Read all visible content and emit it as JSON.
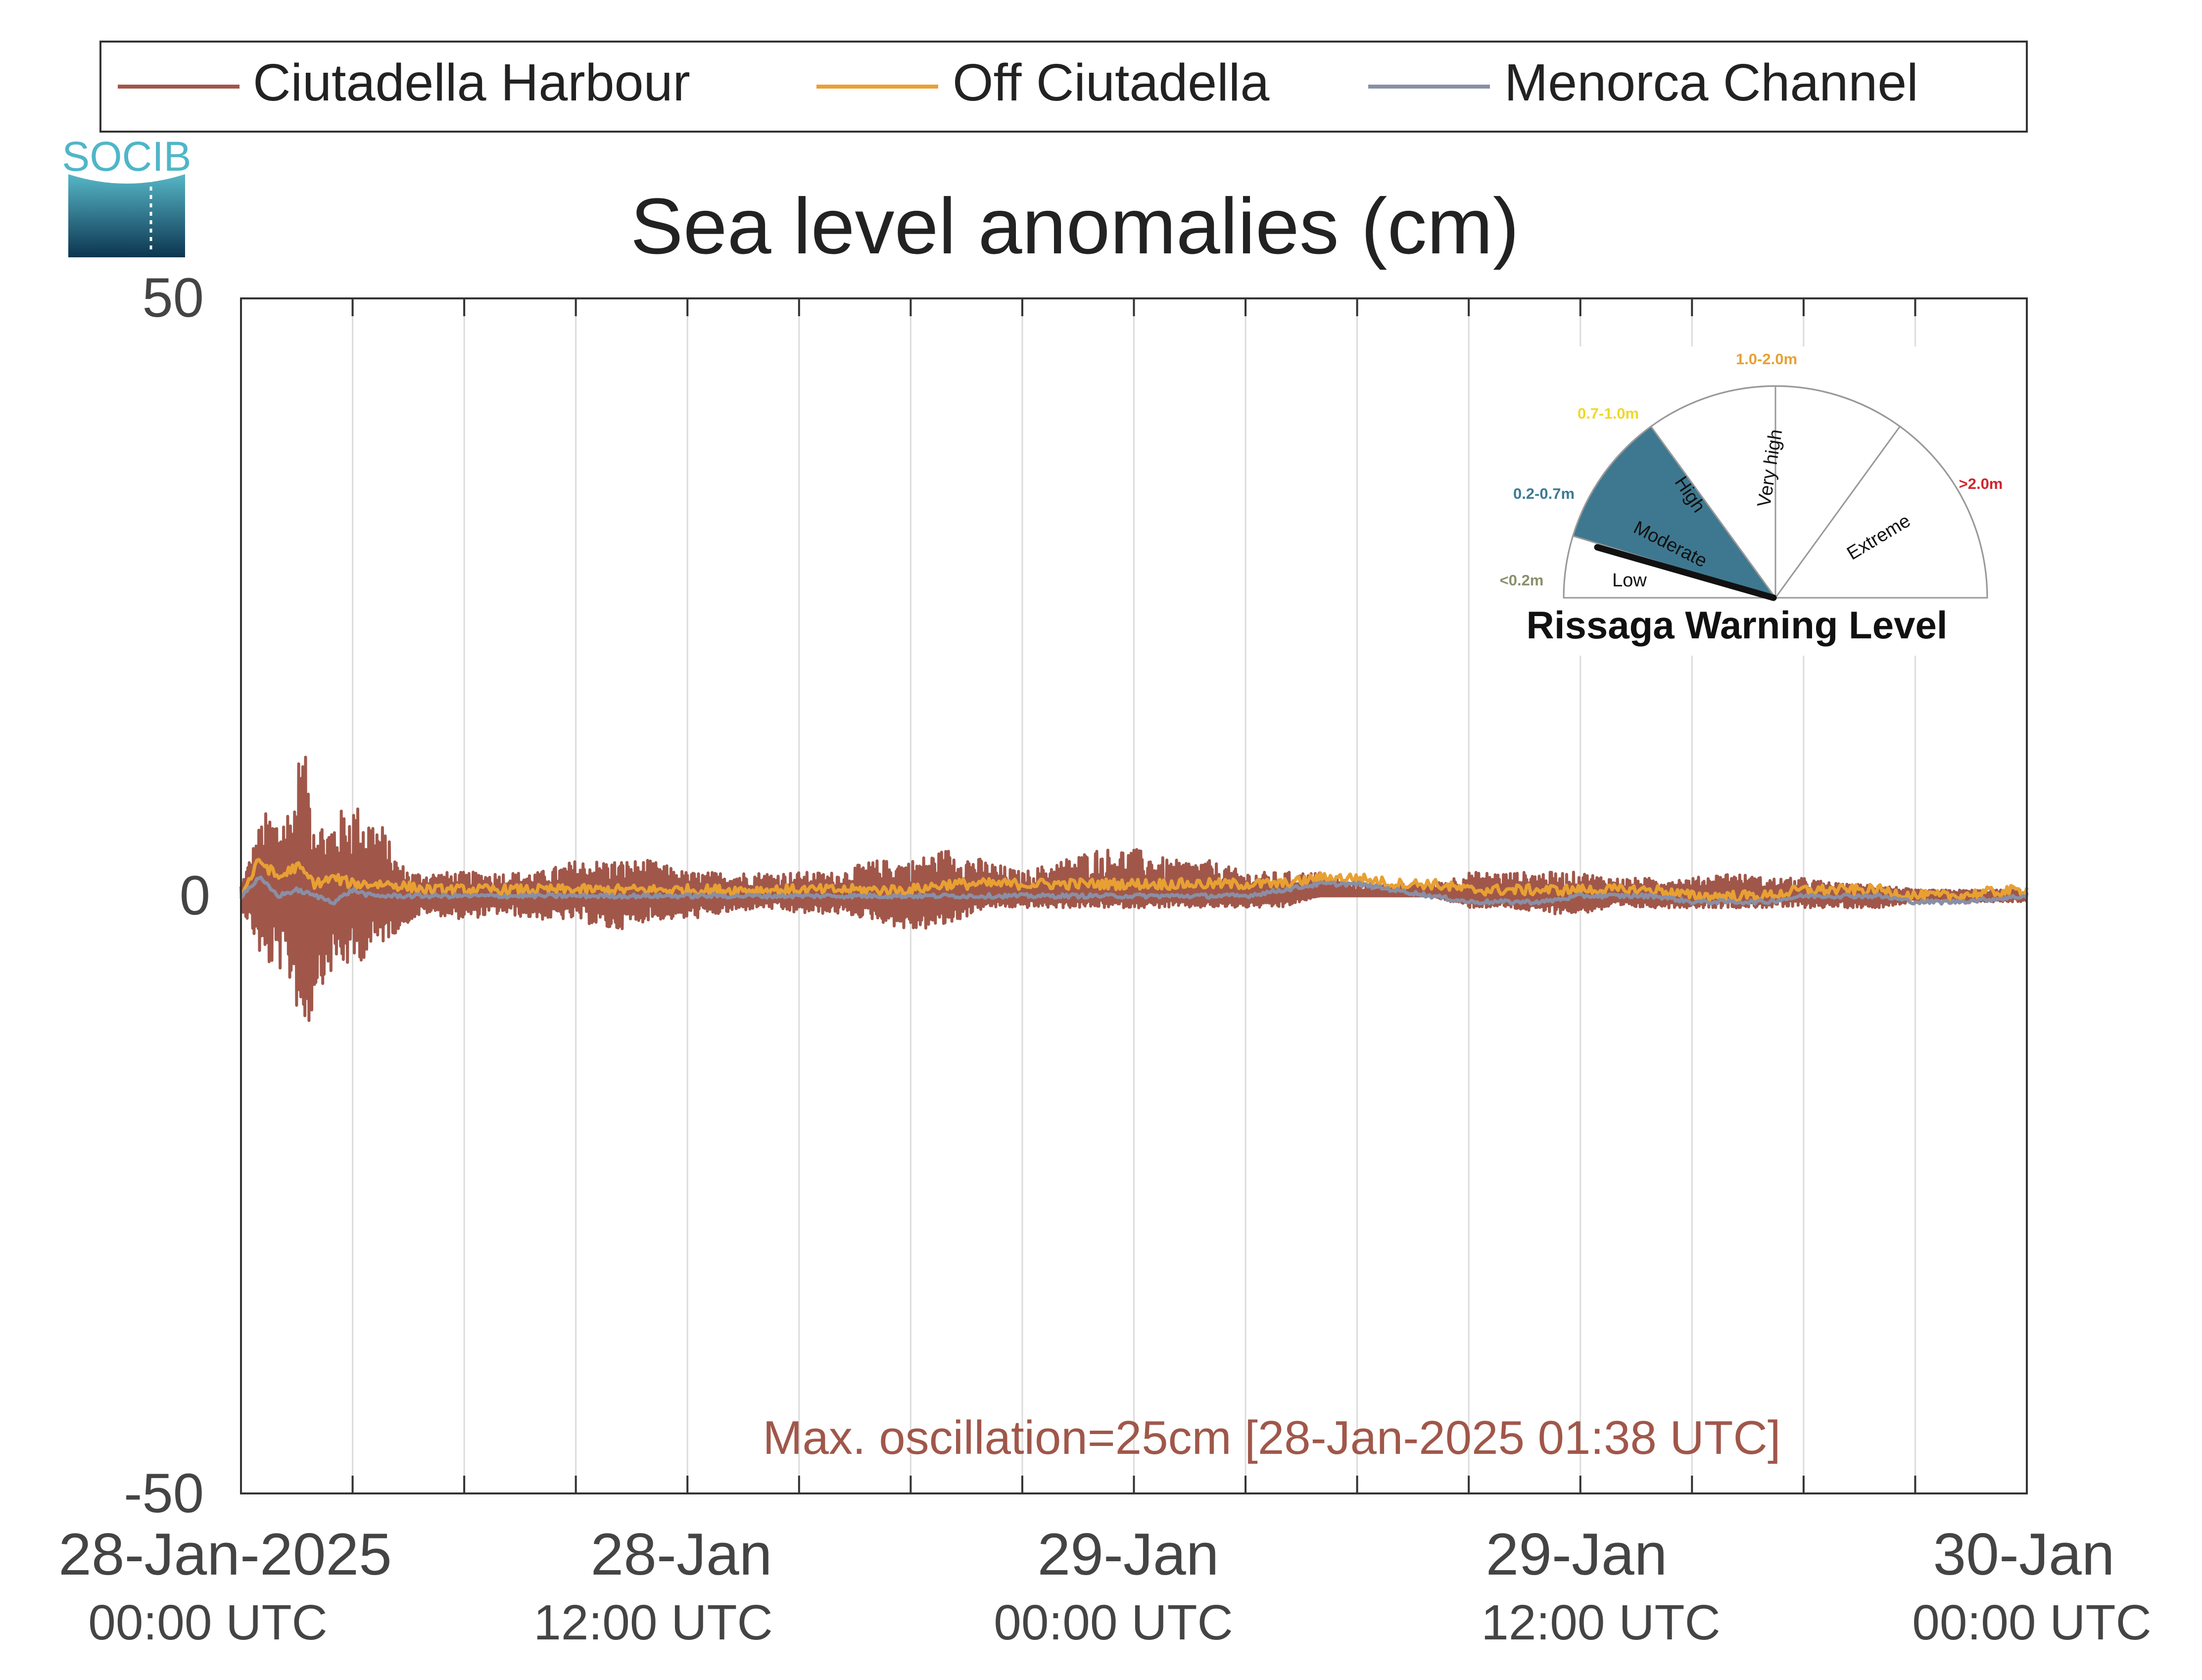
{
  "logo": {
    "text": "SOCIB"
  },
  "chart_data": {
    "type": "line",
    "title": "Sea level anomalies (cm)",
    "xlabel": "",
    "ylabel": "",
    "ylim": [
      -50,
      50
    ],
    "yticks": [
      -50,
      0,
      50
    ],
    "xlim_hours": [
      0,
      48
    ],
    "x_unit": "hours after 28-Jan-2025 00:00 UTC",
    "grid": "vertical every 3 hours",
    "legend_position": "top",
    "x_ticks": [
      {
        "hour": 0,
        "date": "28-Jan-2025",
        "time": "00:00 UTC"
      },
      {
        "hour": 12,
        "date": "28-Jan",
        "time": "12:00 UTC"
      },
      {
        "hour": 24,
        "date": "29-Jan",
        "time": "00:00 UTC"
      },
      {
        "hour": 36,
        "date": "29-Jan",
        "time": "12:00 UTC"
      },
      {
        "hour": 48,
        "date": "30-Jan",
        "time": "00:00 UTC"
      }
    ],
    "annotation": "Max. oscillation=25cm [28-Jan-2025 01:38 UTC]",
    "annotation_color": "#A0574A",
    "series": [
      {
        "name": "Ciutadella Harbour",
        "color": "#A0574A",
        "envelope_x": [
          0,
          0.3,
          0.6,
          1.0,
          1.4,
          1.6,
          1.8,
          2.0,
          2.3,
          2.6,
          3.0,
          3.4,
          3.8,
          4.2,
          4.6,
          5.0,
          6,
          7,
          8,
          9,
          10,
          11,
          12,
          13,
          14,
          15,
          16,
          17,
          18,
          19,
          20,
          21,
          22,
          23,
          24,
          25,
          26,
          27,
          28,
          29,
          30,
          31,
          32,
          33,
          34,
          35,
          36,
          37,
          38,
          39,
          40,
          41,
          42,
          43,
          44,
          45,
          46,
          47,
          48
        ],
        "envelope_min": [
          -1,
          -3,
          -6,
          -6,
          -8,
          -11,
          -12,
          -8,
          -7,
          -6,
          -6,
          -5,
          -4,
          -3,
          -2,
          -1.5,
          -2,
          -1.5,
          -2,
          -2,
          -3,
          -2,
          -2,
          -1.5,
          -1,
          -1.5,
          -1.5,
          -2,
          -3,
          -2.5,
          -1,
          -1,
          -1,
          -1,
          -1,
          -1,
          -1,
          -1,
          -1,
          0,
          0,
          0,
          0,
          -1,
          -1,
          -1.5,
          -1.5,
          -1,
          -1,
          -1,
          -1,
          -1,
          -1,
          -1,
          -1,
          -0.5,
          -0.5,
          -0.5,
          -0.5
        ],
        "envelope_max": [
          1,
          4,
          7,
          7,
          8,
          13,
          11,
          7,
          6,
          7,
          8,
          7,
          6,
          3,
          2,
          2,
          2,
          2,
          2,
          3,
          3,
          3,
          2,
          2,
          2,
          2,
          2,
          3,
          3,
          4,
          3,
          2,
          3,
          4,
          4,
          3,
          3,
          2,
          2,
          2,
          1,
          1,
          1,
          2,
          2,
          2,
          2,
          1.5,
          1.5,
          1.5,
          2,
          1.5,
          1.5,
          1,
          1,
          0.5,
          0.5,
          0.5,
          0.5
        ]
      },
      {
        "name": "Off Ciutadella",
        "color": "#E8A033",
        "x": [
          0,
          0.5,
          1.0,
          1.5,
          2.0,
          2.5,
          3.0,
          3.5,
          4.0,
          5,
          6,
          7,
          8,
          9,
          10,
          11,
          12,
          13,
          14,
          15,
          16,
          17,
          18,
          19,
          20,
          21,
          22,
          23,
          24,
          25,
          26,
          27,
          28,
          29,
          30,
          31,
          32,
          33,
          34,
          35,
          36,
          37,
          38,
          39,
          40,
          41,
          42,
          43,
          44,
          45,
          46,
          47,
          48
        ],
        "y": [
          0,
          3,
          1.5,
          2.5,
          1,
          1.5,
          1,
          1,
          1,
          0.5,
          0.5,
          0.5,
          0.5,
          0.5,
          0.5,
          0.5,
          0.5,
          0.5,
          0.5,
          0.5,
          0.5,
          0.5,
          0.5,
          1,
          1,
          1,
          1,
          1,
          1,
          1,
          1,
          1,
          1,
          1.5,
          1.5,
          1,
          1,
          0.5,
          0.5,
          0.5,
          0.5,
          0.5,
          0.5,
          0,
          0,
          0,
          0.5,
          0.5,
          0.5,
          0,
          0,
          0.3,
          0.5
        ],
        "jitter": 0.9
      },
      {
        "name": "Menorca Channel",
        "color": "#8A8FA5",
        "x": [
          0,
          0.5,
          1.0,
          1.5,
          2.0,
          2.5,
          3.0,
          3.5,
          4.0,
          5,
          6,
          7,
          8,
          9,
          10,
          11,
          12,
          13,
          14,
          15,
          16,
          17,
          18,
          19,
          20,
          21,
          22,
          23,
          24,
          25,
          26,
          27,
          28,
          29,
          30,
          31,
          32,
          33,
          34,
          35,
          36,
          37,
          38,
          39,
          40,
          41,
          42,
          43,
          44,
          45,
          46,
          47,
          48
        ],
        "y": [
          0,
          1.5,
          0,
          0.5,
          0,
          -0.5,
          0.5,
          0,
          0,
          0,
          0,
          0,
          0,
          0,
          0,
          0,
          0,
          0,
          0,
          0,
          0,
          0,
          0,
          0,
          0,
          0,
          0,
          0,
          0,
          0,
          0,
          0,
          0.5,
          1,
          1,
          0.5,
          0,
          -0.5,
          -0.5,
          -0.5,
          0,
          0,
          0,
          -0.5,
          -0.5,
          -0.5,
          0,
          0,
          0,
          -0.5,
          -0.5,
          -0.3,
          0
        ],
        "jitter": 0.35
      }
    ],
    "gauge": {
      "title": "Rissaga Warning Level",
      "needle_level": "Moderate",
      "levels": [
        {
          "label": "Low",
          "range": "<0.2m",
          "range_color": "#8A8F6A",
          "fill": "#ffffff"
        },
        {
          "label": "Moderate",
          "range": "0.2-0.7m",
          "range_color": "#3C7A94",
          "fill": "#3E7890"
        },
        {
          "label": "High",
          "range": "0.7-1.0m",
          "range_color": "#F0D828",
          "fill": "#ffffff"
        },
        {
          "label": "Very high",
          "range": "1.0-2.0m",
          "range_color": "#E8A033",
          "fill": "#ffffff"
        },
        {
          "label": "Extreme",
          "range": ">2.0m",
          "range_color": "#D0242B",
          "fill": "#ffffff"
        }
      ]
    }
  }
}
